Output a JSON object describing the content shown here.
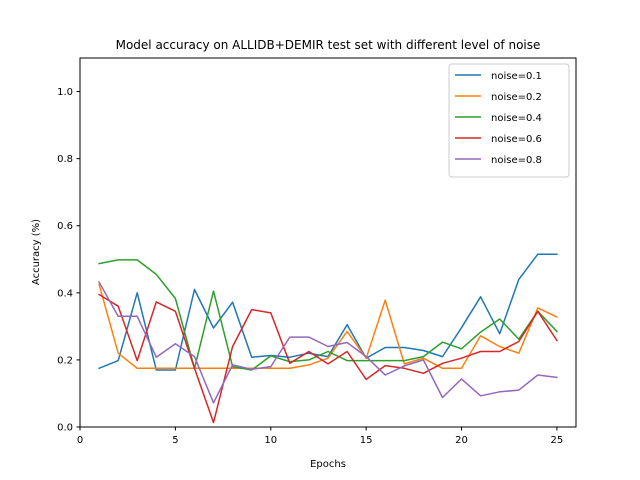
{
  "chart_data": {
    "type": "line",
    "title": "Model accuracy on ALLIDB+DEMIR test set with different level of noise",
    "xlabel": "Epochs",
    "ylabel": "Accuracy (%)",
    "xlim": [
      0,
      26
    ],
    "ylim": [
      0.0,
      1.1
    ],
    "xticks": [
      0,
      5,
      10,
      15,
      20,
      25
    ],
    "yticks": [
      0.0,
      0.2,
      0.4,
      0.6,
      0.8,
      1.0
    ],
    "xtick_labels": [
      "0",
      "5",
      "10",
      "15",
      "20",
      "25"
    ],
    "ytick_labels": [
      "0.0",
      "0.2",
      "0.4",
      "0.6",
      "0.8",
      "1.0"
    ],
    "grid": false,
    "legend_position": "top-right",
    "x": [
      1,
      2,
      3,
      4,
      5,
      6,
      7,
      8,
      9,
      10,
      11,
      12,
      13,
      14,
      15,
      16,
      17,
      18,
      19,
      20,
      21,
      22,
      23,
      24,
      25
    ],
    "series": [
      {
        "name": "noise=0.1",
        "color": "#1f77b4",
        "values": [
          0.175,
          0.198,
          0.4,
          0.17,
          0.17,
          0.41,
          0.295,
          0.372,
          0.208,
          0.213,
          0.208,
          0.22,
          0.21,
          0.305,
          0.205,
          0.237,
          0.237,
          0.228,
          0.21,
          0.296,
          0.388,
          0.278,
          0.44,
          0.515,
          0.515
        ]
      },
      {
        "name": "noise=0.2",
        "color": "#ff7f0e",
        "values": [
          0.425,
          0.22,
          0.175,
          0.175,
          0.175,
          0.175,
          0.175,
          0.175,
          0.175,
          0.175,
          0.175,
          0.185,
          0.205,
          0.285,
          0.205,
          0.378,
          0.188,
          0.205,
          0.175,
          0.175,
          0.272,
          0.24,
          0.22,
          0.355,
          0.328
        ]
      },
      {
        "name": "noise=0.4",
        "color": "#2ca02c",
        "values": [
          0.487,
          0.498,
          0.498,
          0.455,
          0.383,
          0.175,
          0.405,
          0.18,
          0.17,
          0.212,
          0.195,
          0.2,
          0.225,
          0.198,
          0.198,
          0.198,
          0.198,
          0.21,
          0.253,
          0.233,
          0.283,
          0.322,
          0.262,
          0.345,
          0.285
        ]
      },
      {
        "name": "noise=0.6",
        "color": "#d62728",
        "values": [
          0.395,
          0.36,
          0.198,
          0.373,
          0.345,
          0.175,
          0.013,
          0.24,
          0.35,
          0.34,
          0.19,
          0.225,
          0.188,
          0.225,
          0.142,
          0.183,
          0.175,
          0.16,
          0.19,
          0.205,
          0.225,
          0.225,
          0.255,
          0.345,
          0.258
        ]
      },
      {
        "name": "noise=0.8",
        "color": "#9467bd",
        "values": [
          0.432,
          0.33,
          0.33,
          0.208,
          0.248,
          0.21,
          0.072,
          0.185,
          0.172,
          0.18,
          0.268,
          0.268,
          0.24,
          0.252,
          0.21,
          0.155,
          0.182,
          0.2,
          0.088,
          0.143,
          0.093,
          0.105,
          0.11,
          0.155,
          0.148
        ]
      }
    ]
  }
}
